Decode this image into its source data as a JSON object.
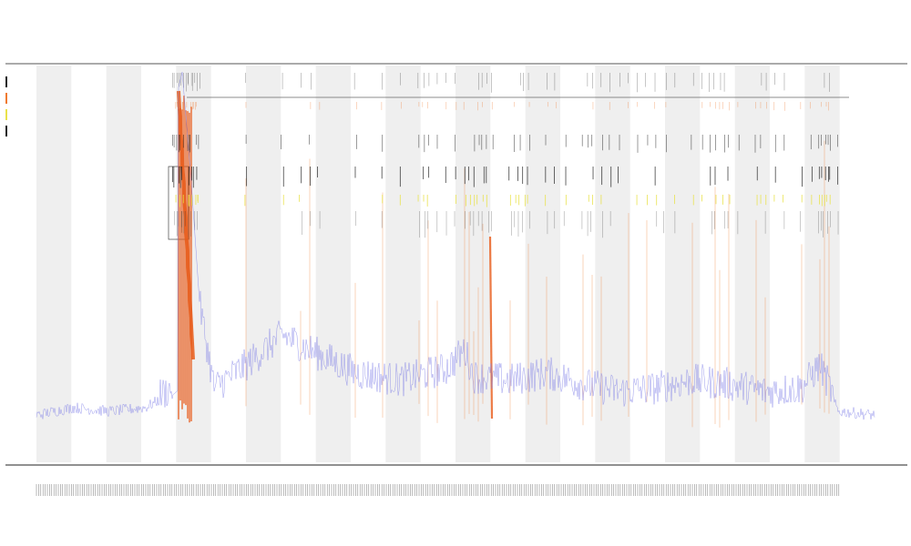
{
  "title": "",
  "subtitle_lines": [
    "",
    ""
  ],
  "chart_data": {
    "type": "line",
    "title": "",
    "xlabel": "",
    "ylabel": "",
    "grid": false,
    "legend_placement": "top-left",
    "legend_entries": [
      "",
      "",
      "",
      ""
    ],
    "colors": {
      "baseline": "#7777e6",
      "spikes": "#f07a30",
      "spikes_strong": "#e85a18",
      "markers": "#222222",
      "highlight": "#e9e24a",
      "band": "#efefef"
    },
    "x_count": 920,
    "band_count": 12,
    "series": [
      {
        "name": "",
        "color": "#7777e6",
        "points": [
          [
            0,
            8
          ],
          [
            40,
            10
          ],
          [
            80,
            9
          ],
          [
            120,
            10
          ],
          [
            150,
            14
          ],
          [
            155,
            15
          ],
          [
            156,
            95
          ],
          [
            160,
            99
          ],
          [
            170,
            70
          ],
          [
            180,
            35
          ],
          [
            195,
            14
          ],
          [
            230,
            20
          ],
          [
            270,
            28
          ],
          [
            300,
            24
          ],
          [
            350,
            18
          ],
          [
            400,
            16
          ],
          [
            450,
            19
          ],
          [
            470,
            24
          ],
          [
            480,
            17
          ],
          [
            520,
            16
          ],
          [
            560,
            18
          ],
          [
            600,
            15
          ],
          [
            640,
            13
          ],
          [
            680,
            14
          ],
          [
            720,
            16
          ],
          [
            760,
            15
          ],
          [
            800,
            13
          ],
          [
            840,
            14
          ],
          [
            860,
            20
          ],
          [
            880,
            9
          ],
          [
            920,
            8
          ]
        ]
      }
    ],
    "spike_positions": [
      156,
      158,
      160,
      162,
      164,
      166,
      168,
      170,
      230,
      290,
      300,
      350,
      380,
      420,
      430,
      440,
      470,
      475,
      480,
      485,
      490,
      520,
      540,
      560,
      600,
      610,
      620,
      650,
      670,
      720,
      745,
      750,
      760,
      790,
      800,
      840,
      860,
      865,
      870
    ],
    "marker_positions": [
      150,
      152,
      154,
      156,
      158,
      160,
      162,
      164,
      166,
      168,
      170,
      172,
      174,
      176,
      178,
      230,
      270,
      290,
      300,
      310,
      350,
      380,
      400,
      420,
      425,
      430,
      440,
      450,
      460,
      470,
      475,
      480,
      485,
      490,
      495,
      500,
      520,
      525,
      530,
      535,
      540,
      560,
      570,
      580,
      600,
      605,
      610,
      620,
      630,
      640,
      650,
      660,
      670,
      680,
      690,
      700,
      720,
      730,
      740,
      745,
      750,
      755,
      760,
      770,
      790,
      795,
      800,
      810,
      820,
      840,
      850,
      860,
      862,
      865,
      868,
      870,
      880
    ],
    "ylim": [
      0,
      100
    ]
  }
}
